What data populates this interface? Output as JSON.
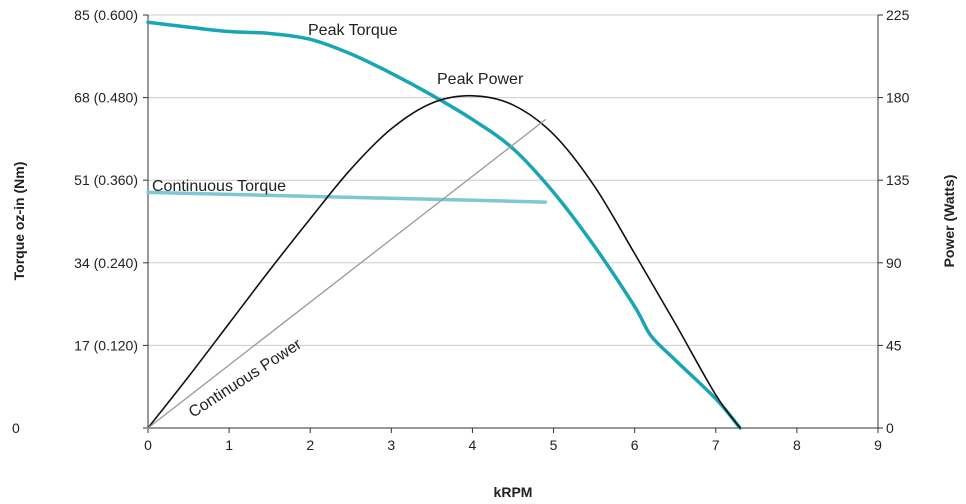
{
  "chart_data": {
    "type": "line",
    "xlabel": "kRPM",
    "ylabel_left": "Torque oz-in (Nm)",
    "ylabel_right": "Power (Watts)",
    "xlim": [
      0,
      9
    ],
    "ylim_left": [
      0,
      85
    ],
    "ylim_right": [
      0,
      225
    ],
    "x_ticks": [
      "0",
      "1",
      "2",
      "3",
      "4",
      "5",
      "6",
      "7",
      "8",
      "9"
    ],
    "y_left_ticks": [
      {
        "value": 0,
        "label": "0"
      },
      {
        "value": 17,
        "label": "17 (0.120)"
      },
      {
        "value": 34,
        "label": "34 (0.240)"
      },
      {
        "value": 51,
        "label": "51 (0.360)"
      },
      {
        "value": 68,
        "label": "68 (0.480)"
      },
      {
        "value": 85,
        "label": "85 (0.600)"
      }
    ],
    "y_right_ticks": [
      {
        "value": 0,
        "label": "0"
      },
      {
        "value": 45,
        "label": "45"
      },
      {
        "value": 90,
        "label": "90"
      },
      {
        "value": 135,
        "label": "135"
      },
      {
        "value": 180,
        "label": "180"
      },
      {
        "value": 225,
        "label": "225"
      }
    ],
    "grid": true,
    "series": [
      {
        "name": "Peak Torque",
        "axis": "left",
        "color": "#1aa5b5",
        "x": [
          0,
          0.5,
          1.0,
          1.5,
          2.0,
          2.5,
          3.0,
          3.5,
          4.0,
          4.5,
          5.0,
          5.5,
          6.0,
          6.2,
          6.5,
          7.0,
          7.3
        ],
        "y": [
          83.5,
          82.5,
          81.6,
          81.2,
          80.0,
          77.0,
          73.0,
          68.5,
          63.5,
          57.5,
          48.5,
          37.5,
          25.0,
          19.0,
          14.0,
          6.0,
          0
        ]
      },
      {
        "name": "Continuous Torque",
        "axis": "left",
        "color": "#7dc8d2",
        "x": [
          0,
          4.9
        ],
        "y": [
          48.5,
          46.5
        ]
      },
      {
        "name": "Peak Power",
        "axis": "right",
        "color": "#111111",
        "x": [
          0,
          0.5,
          1.0,
          1.5,
          2.0,
          2.5,
          3.0,
          3.5,
          4.0,
          4.5,
          5.0,
          5.5,
          6.0,
          6.5,
          7.0,
          7.3
        ],
        "y": [
          0,
          28,
          57,
          86,
          114,
          141,
          163,
          177,
          181,
          176,
          160,
          132,
          95,
          57,
          18,
          0
        ]
      },
      {
        "name": "Continuous Power",
        "axis": "right",
        "color": "#999999",
        "x": [
          0,
          4.9
        ],
        "y": [
          0,
          168
        ]
      }
    ]
  }
}
